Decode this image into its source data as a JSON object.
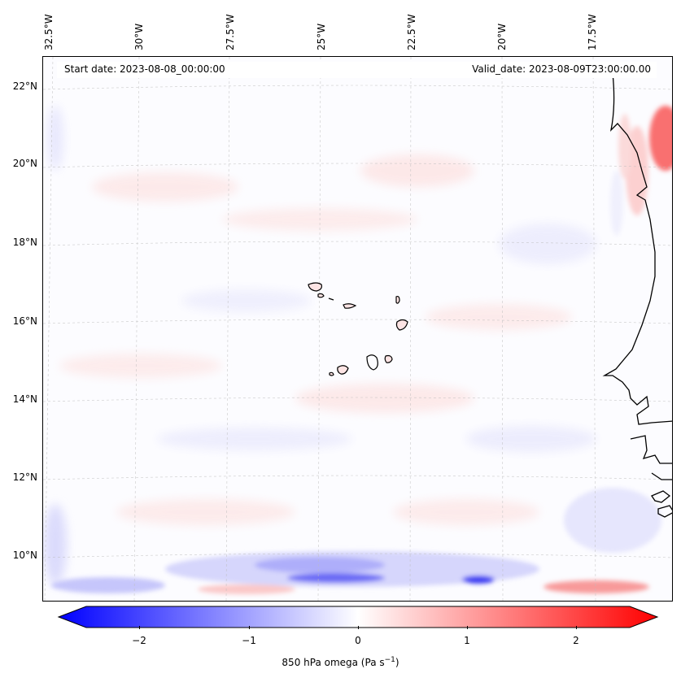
{
  "map": {
    "start_date": "Start date: 2023-08-08_00:00:00",
    "valid_date": "Valid_date: 2023-08-09T23:00:00.00",
    "lon_labels": [
      "32.5°W",
      "30°W",
      "27.5°W",
      "25°W",
      "22.5°W",
      "20°W",
      "17.5°W"
    ],
    "lat_labels": [
      "22°N",
      "20°N",
      "18°N",
      "16°N",
      "14°N",
      "12°N",
      "10°N"
    ],
    "field": "850 hPa omega",
    "colormap": [
      "#0000ff",
      "#ffffff",
      "#ff0000"
    ],
    "coastline_color": "#000000",
    "gridlines": true
  },
  "colorbar": {
    "label_main": "850 hPa omega (Pa s",
    "label_exp": "−1",
    "label_close": ")",
    "ticks": [
      "−2",
      "−1",
      "0",
      "1",
      "2"
    ],
    "tick_values": [
      -2,
      -1,
      0,
      1,
      2
    ],
    "range": [
      -2.5,
      2.5
    ],
    "extend": "both"
  }
}
